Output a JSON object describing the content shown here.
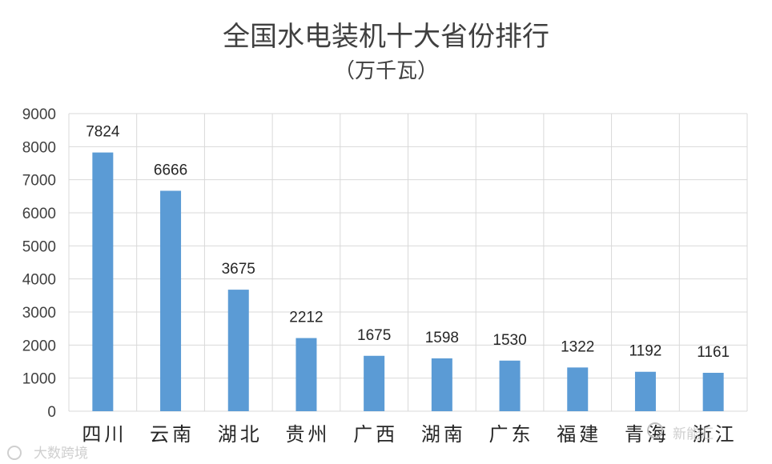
{
  "chart_data": {
    "type": "bar",
    "title": "全国水电装机十大省份排行",
    "subtitle": "（万千瓦）",
    "xlabel": "",
    "ylabel": "",
    "categories": [
      "四川",
      "云南",
      "湖北",
      "贵州",
      "广西",
      "湖南",
      "广东",
      "福建",
      "青海",
      "浙江"
    ],
    "values": [
      7824,
      6666,
      3675,
      2212,
      1675,
      1598,
      1530,
      1322,
      1192,
      1161
    ],
    "ylim": [
      0,
      9000
    ],
    "yticks": [
      0,
      1000,
      2000,
      3000,
      4000,
      5000,
      6000,
      7000,
      8000,
      9000
    ],
    "grid": true,
    "legend": "none",
    "bar_color": "#5b9bd5",
    "grid_color": "#d9d9d9"
  },
  "watermarks": {
    "bottom_left": "大数跨境",
    "bottom_right": "新能汇"
  }
}
